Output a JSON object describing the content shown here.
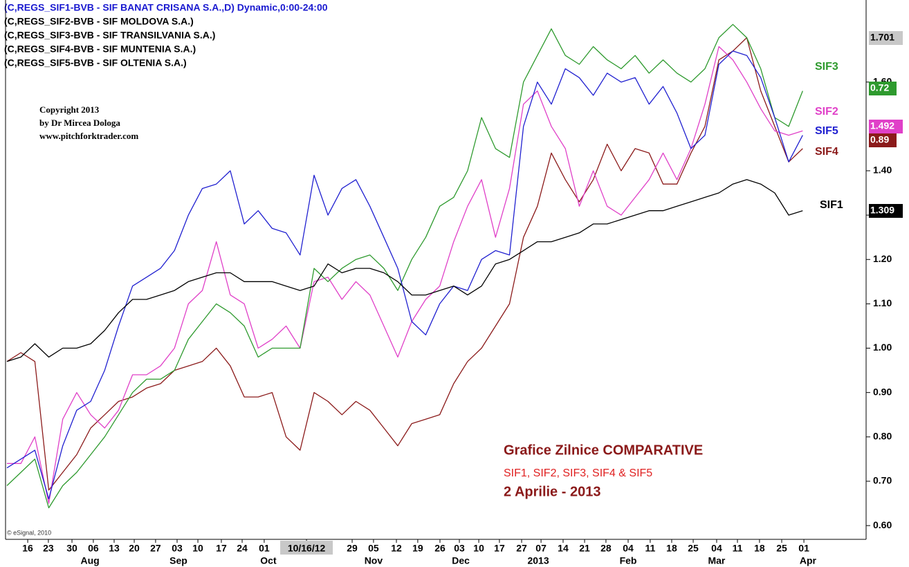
{
  "chart_data": {
    "type": "line",
    "legend_lines": [
      {
        "text": "(C,REGS_SIF1-BVB - SIF BANAT CRISANA S.A.,D) Dynamic,0:00-24:00",
        "color": "#1a1ad0"
      },
      {
        "text": "(C,REGS_SIF2-BVB - SIF MOLDOVA S.A.)",
        "color": "#000000"
      },
      {
        "text": "(C,REGS_SIF3-BVB - SIF TRANSILVANIA S.A.)",
        "color": "#000000"
      },
      {
        "text": "(C,REGS_SIF4-BVB - SIF MUNTENIA S.A.)",
        "color": "#000000"
      },
      {
        "text": "(C,REGS_SIF5-BVB - SIF OLTENIA S.A.)",
        "color": "#000000"
      }
    ],
    "copyright": [
      "Copyright 2013",
      "by Dr Mircea Dologa",
      "www.pitchforktrader.com"
    ],
    "credit": "© eSignal, 2010",
    "annotations": [
      {
        "text": "Grafice Zilnice COMPARATIVE",
        "color": "#8b1a1a"
      },
      {
        "text": "SIF1, SIF2, SIF3, SIF4 & SIF5",
        "color": "#e02020"
      },
      {
        "text": "2 Aprilie -  2013",
        "color": "#8b1a1a"
      }
    ],
    "price_tags": [
      {
        "label": "1.701",
        "color": "#c8c8c8",
        "text_color": "#000000"
      },
      {
        "label": "0.72",
        "color": "#2e9a2e",
        "text_color": "#ffffff"
      },
      {
        "label": "1.492",
        "color": "#e040c8",
        "text_color": "#ffffff"
      },
      {
        "label": "0.89",
        "color": "#8b1a1a",
        "text_color": "#ffffff"
      },
      {
        "label": "1.309",
        "color": "#000000",
        "text_color": "#ffffff"
      }
    ],
    "xlim": [
      0,
      57.5
    ],
    "xticks": [
      {
        "value": 1.49,
        "label": "16"
      },
      {
        "value": 2.97,
        "label": "23"
      },
      {
        "value": 4.66,
        "label": "30"
      },
      {
        "value": 6.19,
        "label": "06"
      },
      {
        "value": 7.68,
        "label": "13"
      },
      {
        "value": 9.12,
        "label": "20"
      },
      {
        "value": 10.65,
        "label": "27"
      },
      {
        "value": 12.19,
        "label": "03"
      },
      {
        "value": 13.68,
        "label": "10"
      },
      {
        "value": 15.36,
        "label": "17"
      },
      {
        "value": 16.85,
        "label": "24"
      },
      {
        "value": 18.43,
        "label": "01"
      },
      {
        "value": 21.46,
        "label": "10/16/12"
      },
      {
        "value": 24.73,
        "label": "29"
      },
      {
        "value": 26.26,
        "label": "05"
      },
      {
        "value": 27.9,
        "label": "12"
      },
      {
        "value": 29.43,
        "label": "19"
      },
      {
        "value": 31.02,
        "label": "26"
      },
      {
        "value": 32.41,
        "label": "03"
      },
      {
        "value": 33.8,
        "label": "10"
      },
      {
        "value": 35.28,
        "label": "17"
      },
      {
        "value": 36.87,
        "label": "27"
      },
      {
        "value": 38.26,
        "label": "07"
      },
      {
        "value": 39.84,
        "label": "14"
      },
      {
        "value": 41.38,
        "label": "21"
      },
      {
        "value": 42.91,
        "label": "28"
      },
      {
        "value": 44.5,
        "label": "04"
      },
      {
        "value": 46.08,
        "label": "11"
      },
      {
        "value": 47.62,
        "label": "18"
      },
      {
        "value": 49.16,
        "label": "25"
      },
      {
        "value": 50.84,
        "label": "04"
      },
      {
        "value": 52.33,
        "label": "11"
      },
      {
        "value": 53.91,
        "label": "18"
      },
      {
        "value": 55.5,
        "label": "25"
      },
      {
        "value": 57.09,
        "label": "01"
      }
    ],
    "month_labels": [
      {
        "value": 5.95,
        "label": "Aug"
      },
      {
        "value": 12.29,
        "label": "Sep"
      },
      {
        "value": 18.73,
        "label": "Oct"
      },
      {
        "value": 26.26,
        "label": "Nov"
      },
      {
        "value": 32.51,
        "label": "Dec"
      },
      {
        "value": 38.06,
        "label": "2013"
      },
      {
        "value": 44.5,
        "label": "Feb"
      },
      {
        "value": 50.84,
        "label": "Mar"
      },
      {
        "value": 57.38,
        "label": "Apr"
      }
    ],
    "ylim": [
      0.569,
      1.785
    ],
    "yticks": [
      {
        "value": 0.6,
        "label": "0.60"
      },
      {
        "value": 0.7,
        "label": "0.70"
      },
      {
        "value": 0.8,
        "label": "0.80"
      },
      {
        "value": 0.9,
        "label": "0.90"
      },
      {
        "value": 1.0,
        "label": "1.00"
      },
      {
        "value": 1.1,
        "label": "1.10"
      },
      {
        "value": 1.2,
        "label": "1.20"
      },
      {
        "value": 1.3,
        "label": "1.30"
      },
      {
        "value": 1.4,
        "label": "1.40"
      },
      {
        "value": 1.6,
        "label": "1.60"
      }
    ],
    "series": [
      {
        "name": "SIF1",
        "color": "#000000",
        "values": [
          0.97,
          0.98,
          1.01,
          0.98,
          1.0,
          1.0,
          1.01,
          1.04,
          1.08,
          1.11,
          1.11,
          1.12,
          1.13,
          1.15,
          1.16,
          1.17,
          1.17,
          1.15,
          1.15,
          1.15,
          1.14,
          1.13,
          1.14,
          1.19,
          1.17,
          1.18,
          1.18,
          1.17,
          1.15,
          1.12,
          1.12,
          1.13,
          1.14,
          1.12,
          1.14,
          1.19,
          1.2,
          1.22,
          1.24,
          1.24,
          1.25,
          1.26,
          1.28,
          1.28,
          1.29,
          1.3,
          1.31,
          1.31,
          1.32,
          1.33,
          1.34,
          1.35,
          1.37,
          1.38,
          1.37,
          1.35,
          1.3,
          1.31
        ]
      },
      {
        "name": "SIF2",
        "color": "#e040c8",
        "values": [
          0.74,
          0.74,
          0.8,
          0.65,
          0.84,
          0.9,
          0.85,
          0.82,
          0.86,
          0.94,
          0.94,
          0.96,
          1.0,
          1.1,
          1.13,
          1.24,
          1.12,
          1.1,
          1.0,
          1.02,
          1.05,
          1.0,
          1.15,
          1.16,
          1.11,
          1.15,
          1.12,
          1.05,
          0.98,
          1.06,
          1.11,
          1.14,
          1.24,
          1.32,
          1.38,
          1.25,
          1.36,
          1.55,
          1.58,
          1.5,
          1.45,
          1.32,
          1.4,
          1.32,
          1.3,
          1.34,
          1.38,
          1.44,
          1.38,
          1.45,
          1.55,
          1.68,
          1.65,
          1.6,
          1.54,
          1.49,
          1.48,
          1.49
        ]
      },
      {
        "name": "SIF3",
        "color": "#2e9a2e",
        "values": [
          0.69,
          0.72,
          0.75,
          0.64,
          0.69,
          0.72,
          0.76,
          0.8,
          0.85,
          0.9,
          0.93,
          0.93,
          0.95,
          1.02,
          1.06,
          1.1,
          1.08,
          1.05,
          0.98,
          1.0,
          1.0,
          1.0,
          1.18,
          1.15,
          1.18,
          1.2,
          1.21,
          1.18,
          1.13,
          1.2,
          1.25,
          1.32,
          1.34,
          1.4,
          1.52,
          1.45,
          1.43,
          1.6,
          1.66,
          1.72,
          1.66,
          1.64,
          1.68,
          1.65,
          1.63,
          1.66,
          1.62,
          1.65,
          1.62,
          1.6,
          1.63,
          1.7,
          1.73,
          1.7,
          1.63,
          1.52,
          1.5,
          1.58
        ]
      },
      {
        "name": "SIF4",
        "color": "#8b1a1a",
        "values": [
          0.97,
          0.99,
          0.97,
          0.68,
          0.72,
          0.76,
          0.82,
          0.85,
          0.88,
          0.89,
          0.91,
          0.92,
          0.95,
          0.96,
          0.97,
          1.0,
          0.96,
          0.89,
          0.89,
          0.9,
          0.8,
          0.77,
          0.9,
          0.88,
          0.85,
          0.88,
          0.86,
          0.82,
          0.78,
          0.83,
          0.84,
          0.85,
          0.92,
          0.97,
          1.0,
          1.05,
          1.1,
          1.25,
          1.32,
          1.44,
          1.38,
          1.33,
          1.38,
          1.46,
          1.4,
          1.45,
          1.44,
          1.37,
          1.37,
          1.44,
          1.5,
          1.65,
          1.67,
          1.7,
          1.58,
          1.5,
          1.42,
          1.45
        ]
      },
      {
        "name": "SIF5",
        "color": "#2020d0",
        "values": [
          0.73,
          0.75,
          0.77,
          0.66,
          0.78,
          0.86,
          0.88,
          0.95,
          1.05,
          1.14,
          1.16,
          1.18,
          1.22,
          1.3,
          1.36,
          1.37,
          1.4,
          1.28,
          1.31,
          1.27,
          1.26,
          1.21,
          1.39,
          1.3,
          1.36,
          1.38,
          1.32,
          1.25,
          1.18,
          1.06,
          1.03,
          1.1,
          1.14,
          1.13,
          1.2,
          1.22,
          1.21,
          1.5,
          1.6,
          1.55,
          1.63,
          1.61,
          1.57,
          1.62,
          1.6,
          1.61,
          1.55,
          1.59,
          1.53,
          1.45,
          1.48,
          1.64,
          1.67,
          1.66,
          1.61,
          1.52,
          1.42,
          1.48
        ]
      }
    ]
  }
}
